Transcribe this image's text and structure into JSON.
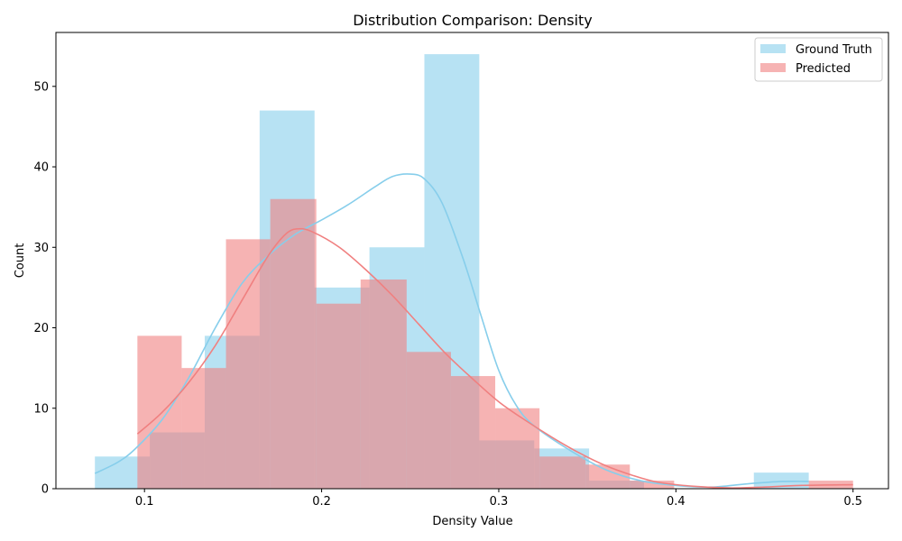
{
  "chart_data": {
    "type": "histogram",
    "title": "Distribution Comparison: Density",
    "xlabel": "Density Value",
    "ylabel": "Count",
    "xlim": [
      0.05,
      0.52
    ],
    "ylim": [
      0,
      56.7
    ],
    "xticks": [
      0.1,
      0.2,
      0.3,
      0.4,
      0.5
    ],
    "xtick_labels": [
      "0.1",
      "0.2",
      "0.3",
      "0.4",
      "0.5"
    ],
    "yticks": [
      0,
      10,
      20,
      30,
      40,
      50
    ],
    "ytick_labels": [
      "0",
      "10",
      "20",
      "30",
      "40",
      "50"
    ],
    "legend_position": "top-right",
    "series": [
      {
        "name": "Ground Truth",
        "color": "#87CEEB",
        "opacity": 0.6,
        "bins": [
          {
            "x0": 0.072,
            "x1": 0.103,
            "count": 4
          },
          {
            "x0": 0.103,
            "x1": 0.134,
            "count": 7
          },
          {
            "x0": 0.134,
            "x1": 0.165,
            "count": 19
          },
          {
            "x0": 0.165,
            "x1": 0.196,
            "count": 47
          },
          {
            "x0": 0.196,
            "x1": 0.227,
            "count": 25
          },
          {
            "x0": 0.227,
            "x1": 0.258,
            "count": 30
          },
          {
            "x0": 0.258,
            "x1": 0.289,
            "count": 54
          },
          {
            "x0": 0.289,
            "x1": 0.32,
            "count": 6
          },
          {
            "x0": 0.32,
            "x1": 0.351,
            "count": 5
          },
          {
            "x0": 0.351,
            "x1": 0.382,
            "count": 1
          },
          {
            "x0": 0.382,
            "x1": 0.413,
            "count": 0
          },
          {
            "x0": 0.413,
            "x1": 0.444,
            "count": 0
          },
          {
            "x0": 0.444,
            "x1": 0.475,
            "count": 2
          }
        ],
        "kde": [
          [
            0.072,
            1.9
          ],
          [
            0.085,
            3.3
          ],
          [
            0.095,
            5.0
          ],
          [
            0.11,
            8.6
          ],
          [
            0.125,
            13.8
          ],
          [
            0.14,
            20.0
          ],
          [
            0.155,
            25.5
          ],
          [
            0.17,
            29.0
          ],
          [
            0.185,
            31.6
          ],
          [
            0.2,
            33.4
          ],
          [
            0.215,
            35.3
          ],
          [
            0.23,
            37.5
          ],
          [
            0.24,
            38.8
          ],
          [
            0.25,
            39.1
          ],
          [
            0.258,
            38.5
          ],
          [
            0.268,
            35.5
          ],
          [
            0.28,
            28.5
          ],
          [
            0.29,
            21.5
          ],
          [
            0.3,
            14.7
          ],
          [
            0.31,
            10.3
          ],
          [
            0.32,
            7.8
          ],
          [
            0.34,
            4.8
          ],
          [
            0.36,
            2.4
          ],
          [
            0.38,
            1.0
          ],
          [
            0.4,
            0.4
          ],
          [
            0.42,
            0.2
          ],
          [
            0.44,
            0.6
          ],
          [
            0.46,
            0.9
          ],
          [
            0.475,
            0.9
          ]
        ]
      },
      {
        "name": "Predicted",
        "color": "#F08080",
        "opacity": 0.6,
        "bins": [
          {
            "x0": 0.096,
            "x1": 0.121,
            "count": 19
          },
          {
            "x0": 0.121,
            "x1": 0.146,
            "count": 15
          },
          {
            "x0": 0.146,
            "x1": 0.171,
            "count": 31
          },
          {
            "x0": 0.171,
            "x1": 0.197,
            "count": 36
          },
          {
            "x0": 0.197,
            "x1": 0.222,
            "count": 23
          },
          {
            "x0": 0.222,
            "x1": 0.248,
            "count": 26
          },
          {
            "x0": 0.248,
            "x1": 0.273,
            "count": 17
          },
          {
            "x0": 0.273,
            "x1": 0.298,
            "count": 14
          },
          {
            "x0": 0.298,
            "x1": 0.323,
            "count": 10
          },
          {
            "x0": 0.323,
            "x1": 0.349,
            "count": 4
          },
          {
            "x0": 0.349,
            "x1": 0.374,
            "count": 3
          },
          {
            "x0": 0.374,
            "x1": 0.399,
            "count": 1
          },
          {
            "x0": 0.399,
            "x1": 0.424,
            "count": 0
          },
          {
            "x0": 0.424,
            "x1": 0.449,
            "count": 0
          },
          {
            "x0": 0.449,
            "x1": 0.475,
            "count": 0
          },
          {
            "x0": 0.475,
            "x1": 0.5,
            "count": 1
          }
        ],
        "kde": [
          [
            0.096,
            6.8
          ],
          [
            0.11,
            9.5
          ],
          [
            0.125,
            13.2
          ],
          [
            0.14,
            17.8
          ],
          [
            0.155,
            23.4
          ],
          [
            0.17,
            29.0
          ],
          [
            0.18,
            31.7
          ],
          [
            0.187,
            32.3
          ],
          [
            0.195,
            31.9
          ],
          [
            0.21,
            30.0
          ],
          [
            0.225,
            27.2
          ],
          [
            0.24,
            24.0
          ],
          [
            0.255,
            20.4
          ],
          [
            0.27,
            16.8
          ],
          [
            0.285,
            13.7
          ],
          [
            0.3,
            10.8
          ],
          [
            0.315,
            8.5
          ],
          [
            0.33,
            6.4
          ],
          [
            0.345,
            4.5
          ],
          [
            0.36,
            2.9
          ],
          [
            0.375,
            1.7
          ],
          [
            0.39,
            0.8
          ],
          [
            0.41,
            0.3
          ],
          [
            0.43,
            0.1
          ],
          [
            0.45,
            0.2
          ],
          [
            0.47,
            0.4
          ],
          [
            0.5,
            0.5
          ]
        ]
      }
    ]
  }
}
